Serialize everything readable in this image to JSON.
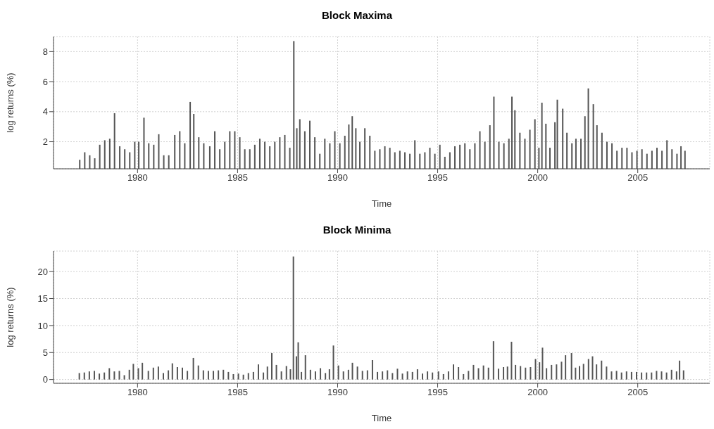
{
  "chart_data": [
    {
      "type": "bar",
      "title": "Block Maxima",
      "xlabel": "Time",
      "ylabel": "log returns (%)",
      "color": "#555555",
      "grid": true,
      "xlim": [
        1975.8,
        2008.6
      ],
      "xticks": [
        1980,
        1985,
        1990,
        1995,
        2000,
        2005
      ],
      "ylim": [
        0.2,
        9.0
      ],
      "yticks": [
        2,
        4,
        6,
        8
      ],
      "x": [
        1977.1,
        1977.35,
        1977.6,
        1977.85,
        1978.1,
        1978.35,
        1978.6,
        1978.84,
        1979.1,
        1979.35,
        1979.6,
        1979.85,
        1980.05,
        1980.31,
        1980.55,
        1980.8,
        1981.05,
        1981.3,
        1981.55,
        1981.85,
        1982.1,
        1982.35,
        1982.62,
        1982.8,
        1983.05,
        1983.3,
        1983.6,
        1983.85,
        1984.1,
        1984.35,
        1984.6,
        1984.85,
        1985.1,
        1985.35,
        1985.6,
        1985.85,
        1986.1,
        1986.35,
        1986.6,
        1986.85,
        1987.1,
        1987.35,
        1987.6,
        1987.8,
        1987.95,
        1988.1,
        1988.35,
        1988.6,
        1988.85,
        1989.1,
        1989.35,
        1989.6,
        1989.85,
        1990.1,
        1990.35,
        1990.55,
        1990.72,
        1990.9,
        1991.1,
        1991.35,
        1991.6,
        1991.85,
        1992.1,
        1992.35,
        1992.6,
        1992.85,
        1993.1,
        1993.35,
        1993.6,
        1993.85,
        1994.1,
        1994.35,
        1994.6,
        1994.85,
        1995.1,
        1995.35,
        1995.6,
        1995.85,
        1996.1,
        1996.35,
        1996.6,
        1996.85,
        1997.1,
        1997.35,
        1997.6,
        1997.8,
        1998.05,
        1998.3,
        1998.55,
        1998.7,
        1998.85,
        1999.1,
        1999.35,
        1999.6,
        1999.85,
        2000.05,
        2000.2,
        2000.4,
        2000.6,
        2000.85,
        2000.97,
        2001.24,
        2001.45,
        2001.7,
        2001.9,
        2002.15,
        2002.35,
        2002.52,
        2002.77,
        2002.95,
        2003.2,
        2003.45,
        2003.7,
        2003.95,
        2004.2,
        2004.45,
        2004.7,
        2004.95,
        2005.2,
        2005.45,
        2005.7,
        2005.95,
        2006.2,
        2006.45,
        2006.7,
        2006.95,
        2007.15,
        2007.35
      ],
      "values": [
        0.8,
        1.3,
        1.1,
        0.9,
        1.8,
        2.1,
        2.2,
        3.9,
        1.7,
        1.5,
        1.3,
        2.0,
        2.0,
        3.6,
        1.9,
        1.8,
        2.5,
        1.1,
        1.1,
        2.45,
        2.7,
        1.9,
        4.65,
        3.85,
        2.3,
        1.9,
        1.7,
        2.7,
        1.5,
        2.0,
        2.7,
        2.7,
        2.3,
        1.5,
        1.5,
        1.8,
        2.2,
        2.0,
        1.7,
        2.0,
        2.3,
        2.45,
        1.6,
        8.7,
        2.9,
        3.5,
        2.7,
        3.4,
        2.3,
        1.2,
        2.2,
        1.9,
        2.7,
        1.9,
        2.4,
        3.15,
        3.7,
        2.9,
        2.0,
        2.9,
        2.4,
        1.4,
        1.5,
        1.7,
        1.6,
        1.3,
        1.4,
        1.3,
        1.2,
        2.1,
        1.2,
        1.3,
        1.6,
        1.2,
        1.8,
        1.0,
        1.3,
        1.7,
        1.8,
        1.9,
        1.5,
        1.9,
        2.7,
        2.0,
        3.1,
        5.0,
        2.0,
        1.9,
        2.2,
        5.0,
        4.1,
        2.6,
        2.2,
        2.8,
        3.5,
        1.6,
        4.6,
        3.2,
        1.6,
        3.3,
        4.8,
        4.2,
        2.6,
        1.9,
        2.2,
        2.2,
        3.7,
        5.55,
        4.5,
        3.1,
        2.6,
        2.0,
        1.9,
        1.4,
        1.6,
        1.6,
        1.3,
        1.4,
        1.5,
        1.2,
        1.4,
        1.6,
        1.4,
        2.1,
        1.5,
        1.2,
        1.7,
        1.4
      ]
    },
    {
      "type": "bar",
      "title": "Block Minima",
      "xlabel": "Time",
      "ylabel": "log returns (%)",
      "color": "#555555",
      "grid": true,
      "xlim": [
        1975.8,
        2008.6
      ],
      "xticks": [
        1980,
        1985,
        1990,
        1995,
        2000,
        2005
      ],
      "ylim": [
        -0.7,
        23.8
      ],
      "yticks": [
        0,
        5,
        10,
        15,
        20
      ],
      "x": [
        1977.1,
        1977.35,
        1977.6,
        1977.85,
        1978.1,
        1978.35,
        1978.6,
        1978.85,
        1979.1,
        1979.35,
        1979.6,
        1979.8,
        1980.05,
        1980.25,
        1980.55,
        1980.8,
        1981.05,
        1981.3,
        1981.55,
        1981.75,
        1982.0,
        1982.25,
        1982.5,
        1982.8,
        1983.05,
        1983.3,
        1983.55,
        1983.8,
        1984.05,
        1984.3,
        1984.55,
        1984.8,
        1985.05,
        1985.3,
        1985.55,
        1985.8,
        1986.05,
        1986.3,
        1986.5,
        1986.72,
        1986.95,
        1987.2,
        1987.45,
        1987.65,
        1987.8,
        1987.95,
        1988.04,
        1988.2,
        1988.4,
        1988.65,
        1988.9,
        1989.15,
        1989.4,
        1989.6,
        1989.8,
        1990.05,
        1990.3,
        1990.55,
        1990.75,
        1991.0,
        1991.25,
        1991.5,
        1991.75,
        1992.0,
        1992.25,
        1992.5,
        1992.75,
        1993.0,
        1993.25,
        1993.5,
        1993.75,
        1994.0,
        1994.25,
        1994.5,
        1994.75,
        1995.05,
        1995.3,
        1995.55,
        1995.8,
        1996.05,
        1996.3,
        1996.55,
        1996.8,
        1997.05,
        1997.3,
        1997.55,
        1997.8,
        1998.05,
        1998.3,
        1998.5,
        1998.7,
        1998.9,
        1999.15,
        1999.4,
        1999.65,
        1999.9,
        2000.1,
        2000.25,
        2000.45,
        2000.7,
        2000.95,
        2001.2,
        2001.4,
        2001.7,
        2001.9,
        2002.1,
        2002.3,
        2002.55,
        2002.75,
        2002.95,
        2003.2,
        2003.45,
        2003.7,
        2003.95,
        2004.2,
        2004.45,
        2004.7,
        2004.95,
        2005.2,
        2005.45,
        2005.7,
        2005.95,
        2006.2,
        2006.45,
        2006.7,
        2006.95,
        2007.1,
        2007.3
      ],
      "values": [
        1.2,
        1.3,
        1.5,
        1.6,
        1.1,
        1.3,
        2.1,
        1.5,
        1.6,
        0.8,
        1.8,
        2.9,
        2.1,
        3.1,
        1.6,
        2.2,
        2.4,
        1.2,
        1.7,
        3.0,
        2.3,
        2.2,
        1.6,
        4.0,
        2.6,
        1.7,
        1.6,
        1.6,
        1.7,
        1.8,
        1.4,
        1.0,
        1.1,
        0.9,
        1.2,
        1.4,
        2.8,
        1.3,
        2.4,
        4.9,
        2.7,
        1.5,
        2.5,
        1.9,
        22.8,
        4.3,
        6.9,
        1.4,
        4.5,
        1.8,
        1.5,
        2.1,
        1.2,
        1.9,
        6.3,
        2.6,
        1.5,
        1.8,
        3.1,
        2.4,
        1.6,
        1.7,
        3.6,
        1.4,
        1.5,
        1.7,
        1.2,
        2.0,
        1.1,
        1.5,
        1.4,
        1.9,
        1.1,
        1.5,
        1.3,
        1.5,
        1.0,
        1.5,
        2.8,
        2.3,
        1.0,
        1.6,
        2.7,
        2.1,
        2.6,
        2.2,
        7.1,
        2.0,
        2.3,
        2.4,
        7.0,
        2.7,
        2.5,
        2.2,
        2.3,
        3.8,
        3.2,
        5.9,
        2.1,
        2.7,
        2.8,
        3.3,
        4.5,
        4.9,
        2.2,
        2.5,
        2.9,
        3.8,
        4.3,
        2.8,
        3.5,
        2.4,
        1.5,
        1.6,
        1.3,
        1.5,
        1.4,
        1.4,
        1.3,
        1.3,
        1.3,
        1.6,
        1.5,
        1.3,
        1.8,
        1.5,
        3.5,
        1.7
      ]
    }
  ]
}
